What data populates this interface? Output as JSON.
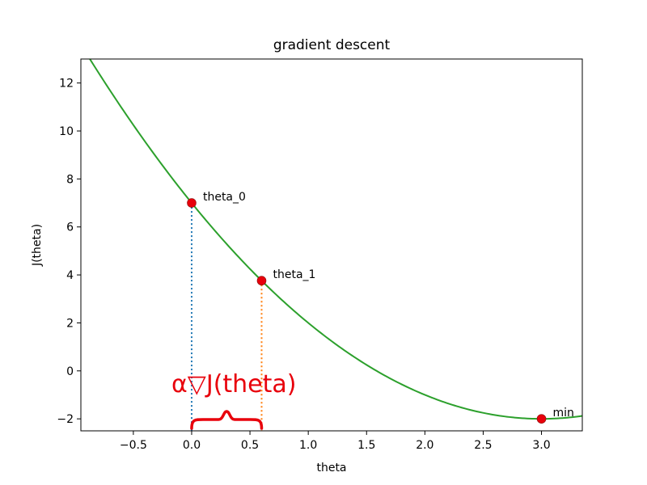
{
  "chart_data": {
    "type": "line",
    "title": "gradient descent",
    "xlabel": "theta",
    "ylabel": "J(theta)",
    "xlim": [
      -0.95,
      3.35
    ],
    "ylim": [
      -2.5,
      13
    ],
    "xticks": [
      -0.5,
      0.0,
      0.5,
      1.0,
      1.5,
      2.0,
      2.5,
      3.0
    ],
    "xtick_labels": [
      "−0.5",
      "0.0",
      "0.5",
      "1.0",
      "1.5",
      "2.0",
      "2.5",
      "3.0"
    ],
    "yticks": [
      -2,
      0,
      2,
      4,
      6,
      8,
      10,
      12
    ],
    "ytick_labels": [
      "−2",
      "0",
      "2",
      "4",
      "6",
      "8",
      "10",
      "12"
    ],
    "grid": false,
    "curve": {
      "function": "J(theta) = (theta - 3)^2 - 2",
      "x_range": [
        -0.95,
        3.35
      ],
      "color": "#2ca02c"
    },
    "points": [
      {
        "label": "theta_0",
        "x": 0.0,
        "y": 7.0,
        "color": "#e8000b",
        "drop_line_color": "#1f77b4"
      },
      {
        "label": "theta_1",
        "x": 0.6,
        "y": 3.76,
        "color": "#e8000b",
        "drop_line_color": "#ff7f0e"
      },
      {
        "label": "min",
        "x": 3.0,
        "y": -2.0,
        "color": "#e8000b"
      }
    ],
    "annotation": {
      "text": "α▽J(theta)",
      "color": "#e8000b",
      "brace_from": 0.0,
      "brace_to": 0.6
    }
  }
}
